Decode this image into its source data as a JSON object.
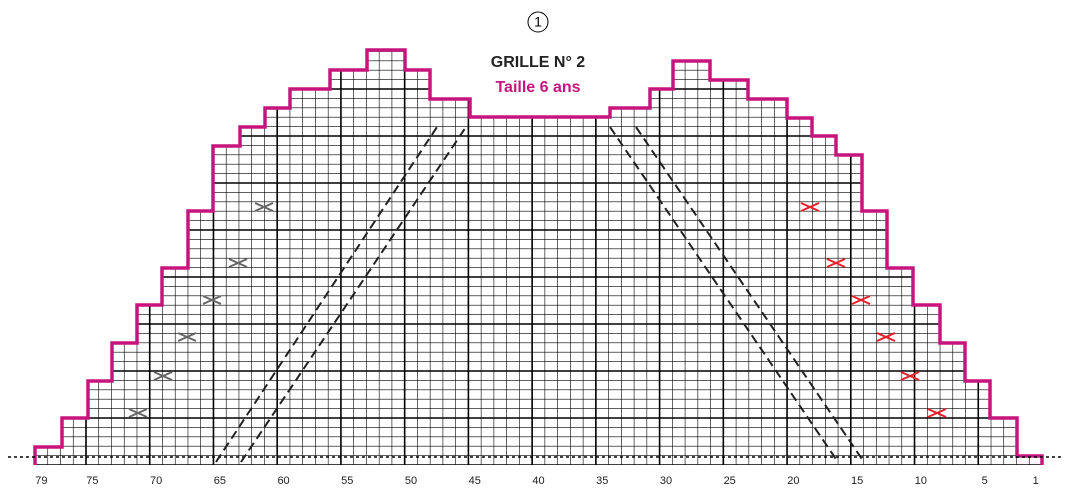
{
  "header": {
    "number": "1",
    "title": "GRILLE N° 2",
    "subtitle": "Taille 6 ans"
  },
  "stitch_labels": [
    79,
    75,
    70,
    65,
    60,
    55,
    50,
    45,
    40,
    35,
    30,
    25,
    20,
    15,
    10,
    5,
    1
  ]
}
